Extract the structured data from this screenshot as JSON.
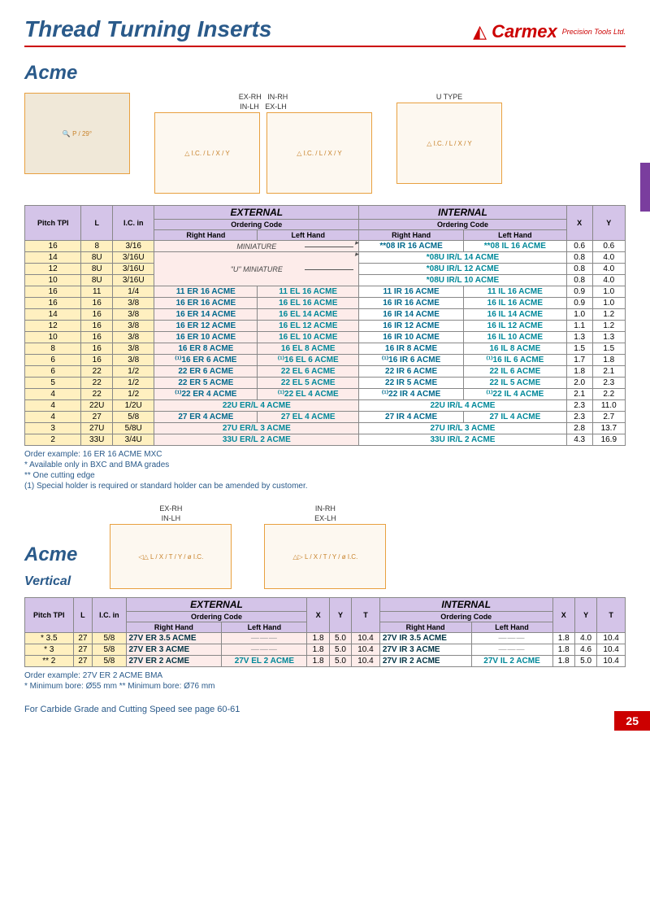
{
  "header": {
    "title": "Thread Turning Inserts",
    "brand": "Carmex",
    "brand_sub": "Precision Tools Ltd."
  },
  "section1": {
    "title": "Acme",
    "diag_labels": {
      "d1": "",
      "d2a": "EX-RH",
      "d2b": "IN-LH",
      "d3a": "IN-RH",
      "d3b": "EX-LH",
      "d4": "U TYPE"
    },
    "table": {
      "hdr_pitch": "Pitch\nTPI",
      "hdr_L": "L",
      "hdr_IC": "I.C.\nin",
      "hdr_ext": "EXTERNAL",
      "hdr_int": "INTERNAL",
      "hdr_order": "Ordering Code",
      "hdr_rh": "Right Hand",
      "hdr_lh": "Left Hand",
      "hdr_X": "X",
      "hdr_Y": "Y",
      "mini": "MINIATURE",
      "umini": "\"U\" MINIATURE",
      "rows": [
        {
          "pitch": "16",
          "L": "8",
          "IC": "3/16",
          "ext_rh": "",
          "ext_lh": "",
          "int_rh": "**08 IR 16 ACME",
          "int_lh": "**08 IL 16 ACME",
          "X": "0.6",
          "Y": "0.6",
          "mini": "mini"
        },
        {
          "pitch": "14",
          "L": "8U",
          "IC": "3/16U",
          "ext_rh": "",
          "ext_lh": "",
          "int_rh": "*08U IR/L 14 ACME",
          "int_lh": "",
          "X": "0.8",
          "Y": "4.0",
          "mini": "umini"
        },
        {
          "pitch": "12",
          "L": "8U",
          "IC": "3/16U",
          "ext_rh": "",
          "ext_lh": "",
          "int_rh": "*08U IR/L 12 ACME",
          "int_lh": "",
          "X": "0.8",
          "Y": "4.0"
        },
        {
          "pitch": "10",
          "L": "8U",
          "IC": "3/16U",
          "ext_rh": "",
          "ext_lh": "",
          "int_rh": "*08U IR/L 10 ACME",
          "int_lh": "",
          "X": "0.8",
          "Y": "4.0"
        },
        {
          "pitch": "16",
          "L": "11",
          "IC": "1/4",
          "ext_rh": "11 ER 16 ACME",
          "ext_lh": "11 EL 16 ACME",
          "int_rh": "11 IR 16 ACME",
          "int_lh": "11 IL 16 ACME",
          "X": "0.9",
          "Y": "1.0"
        },
        {
          "pitch": "16",
          "L": "16",
          "IC": "3/8",
          "ext_rh": "16 ER 16 ACME",
          "ext_lh": "16 EL 16 ACME",
          "int_rh": "16 IR 16 ACME",
          "int_lh": "16 IL 16 ACME",
          "X": "0.9",
          "Y": "1.0"
        },
        {
          "pitch": "14",
          "L": "16",
          "IC": "3/8",
          "ext_rh": "16 ER 14 ACME",
          "ext_lh": "16 EL 14 ACME",
          "int_rh": "16 IR 14 ACME",
          "int_lh": "16 IL 14 ACME",
          "X": "1.0",
          "Y": "1.2"
        },
        {
          "pitch": "12",
          "L": "16",
          "IC": "3/8",
          "ext_rh": "16 ER 12 ACME",
          "ext_lh": "16 EL 12 ACME",
          "int_rh": "16 IR 12 ACME",
          "int_lh": "16 IL 12 ACME",
          "X": "1.1",
          "Y": "1.2"
        },
        {
          "pitch": "10",
          "L": "16",
          "IC": "3/8",
          "ext_rh": "16 ER 10 ACME",
          "ext_lh": "16 EL 10 ACME",
          "int_rh": "16 IR 10 ACME",
          "int_lh": "16 IL 10 ACME",
          "X": "1.3",
          "Y": "1.3"
        },
        {
          "pitch": "8",
          "L": "16",
          "IC": "3/8",
          "ext_rh": "16 ER 8 ACME",
          "ext_lh": "16 EL 8 ACME",
          "int_rh": "16 IR 8 ACME",
          "int_lh": "16 IL 8 ACME",
          "X": "1.5",
          "Y": "1.5"
        },
        {
          "pitch": "6",
          "L": "16",
          "IC": "3/8",
          "ext_rh": "⁽¹⁾16 ER 6 ACME",
          "ext_lh": "⁽¹⁾16 EL 6 ACME",
          "int_rh": "⁽¹⁾16 IR 6 ACME",
          "int_lh": "⁽¹⁾16 IL 6 ACME",
          "X": "1.7",
          "Y": "1.8"
        },
        {
          "pitch": "6",
          "L": "22",
          "IC": "1/2",
          "ext_rh": "22 ER 6 ACME",
          "ext_lh": "22 EL 6 ACME",
          "int_rh": "22 IR 6 ACME",
          "int_lh": "22 IL 6 ACME",
          "X": "1.8",
          "Y": "2.1"
        },
        {
          "pitch": "5",
          "L": "22",
          "IC": "1/2",
          "ext_rh": "22 ER 5 ACME",
          "ext_lh": "22 EL 5 ACME",
          "int_rh": "22 IR 5 ACME",
          "int_lh": "22 IL 5 ACME",
          "X": "2.0",
          "Y": "2.3"
        },
        {
          "pitch": "4",
          "L": "22",
          "IC": "1/2",
          "ext_rh": "⁽¹⁾22 ER 4 ACME",
          "ext_lh": "⁽¹⁾22 EL 4 ACME",
          "int_rh": "⁽¹⁾22 IR 4 ACME",
          "int_lh": "⁽¹⁾22 IL 4 ACME",
          "X": "2.1",
          "Y": "2.2"
        },
        {
          "pitch": "4",
          "L": "22U",
          "IC": "1/2U",
          "ext_span": "22U ER/L 4 ACME",
          "int_span": "22U IR/L 4 ACME",
          "X": "2.3",
          "Y": "11.0"
        },
        {
          "pitch": "4",
          "L": "27",
          "IC": "5/8",
          "ext_rh": "27 ER 4 ACME",
          "ext_lh": "27 EL 4 ACME",
          "int_rh": "27 IR 4 ACME",
          "int_lh": "27 IL 4 ACME",
          "X": "2.3",
          "Y": "2.7"
        },
        {
          "pitch": "3",
          "L": "27U",
          "IC": "5/8U",
          "ext_span": "27U ER/L 3 ACME",
          "int_span": "27U IR/L 3 ACME",
          "X": "2.8",
          "Y": "13.7"
        },
        {
          "pitch": "2",
          "L": "33U",
          "IC": "3/4U",
          "ext_span": "33U ER/L 2 ACME",
          "int_span": "33U IR/L 2 ACME",
          "X": "4.3",
          "Y": "16.9"
        }
      ]
    },
    "notes": [
      "Order example: 16 ER 16 ACME MXC",
      "* Available only in BXC and BMA grades",
      "** One cutting edge",
      "(1) Special holder is required or standard holder can be amended by customer."
    ]
  },
  "section2": {
    "title": "Acme",
    "subtitle": "Vertical",
    "diag_labels": {
      "d1a": "EX-RH",
      "d1b": "IN-LH",
      "d2a": "IN-RH",
      "d2b": "EX-LH"
    },
    "table": {
      "hdr_pitch": "Pitch\nTPI",
      "hdr_L": "L",
      "hdr_IC": "I.C.\nin",
      "hdr_ext": "EXTERNAL",
      "hdr_int": "INTERNAL",
      "hdr_order": "Ordering Code",
      "hdr_rh": "Right Hand",
      "hdr_lh": "Left Hand",
      "hdr_X": "X",
      "hdr_Y": "Y",
      "hdr_T": "T",
      "rows": [
        {
          "pitch": "* 3.5",
          "L": "27",
          "IC": "5/8",
          "ext_rh": "27V ER 3.5 ACME",
          "ext_lh": "—",
          "eX": "1.8",
          "eY": "5.0",
          "eT": "10.4",
          "int_rh": "27V IR 3.5 ACME",
          "int_lh": "—",
          "iX": "1.8",
          "iY": "4.0",
          "iT": "10.4"
        },
        {
          "pitch": "* 3",
          "L": "27",
          "IC": "5/8",
          "ext_rh": "27V ER 3 ACME",
          "ext_lh": "—",
          "eX": "1.8",
          "eY": "5.0",
          "eT": "10.4",
          "int_rh": "27V IR 3 ACME",
          "int_lh": "—",
          "iX": "1.8",
          "iY": "4.6",
          "iT": "10.4"
        },
        {
          "pitch": "** 2",
          "L": "27",
          "IC": "5/8",
          "ext_rh": "27V ER 2 ACME",
          "ext_lh": "27V EL 2 ACME",
          "eX": "1.8",
          "eY": "5.0",
          "eT": "10.4",
          "int_rh": "27V IR 2 ACME",
          "int_lh": "27V IL 2 ACME",
          "iX": "1.8",
          "iY": "5.0",
          "iT": "10.4"
        }
      ]
    },
    "notes": [
      "Order example: 27V ER 2 ACME BMA",
      "* Minimum bore: Ø55 mm   ** Minimum bore: Ø76 mm"
    ]
  },
  "footer_note": "For Carbide Grade and Cutting Speed see page 60-61",
  "page_num": "25"
}
